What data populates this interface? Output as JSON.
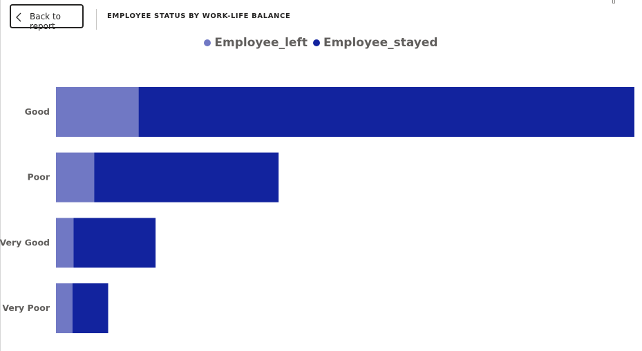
{
  "nav": {
    "back_label": "Back to report",
    "back_icon": "chevron-left-icon"
  },
  "visual": {
    "title": "EMPLOYEE STATUS BY WORK-LIFE BALANCE"
  },
  "chart_data": {
    "type": "bar",
    "orientation": "horizontal",
    "stacked": true,
    "categories": [
      "Good",
      "Poor",
      "Very Good",
      "Very Poor"
    ],
    "series": [
      {
        "name": "Employee_left",
        "color": "#7078C4",
        "values": [
          6430,
          2970,
          1370,
          1280
        ]
      },
      {
        "name": "Employee_stayed",
        "color": "#12239E",
        "values": [
          38570,
          14350,
          6380,
          2780
        ]
      }
    ],
    "xlim": [
      0,
      45000
    ],
    "grid": false,
    "legend_position": "top-center",
    "xlabel": "",
    "ylabel": ""
  }
}
